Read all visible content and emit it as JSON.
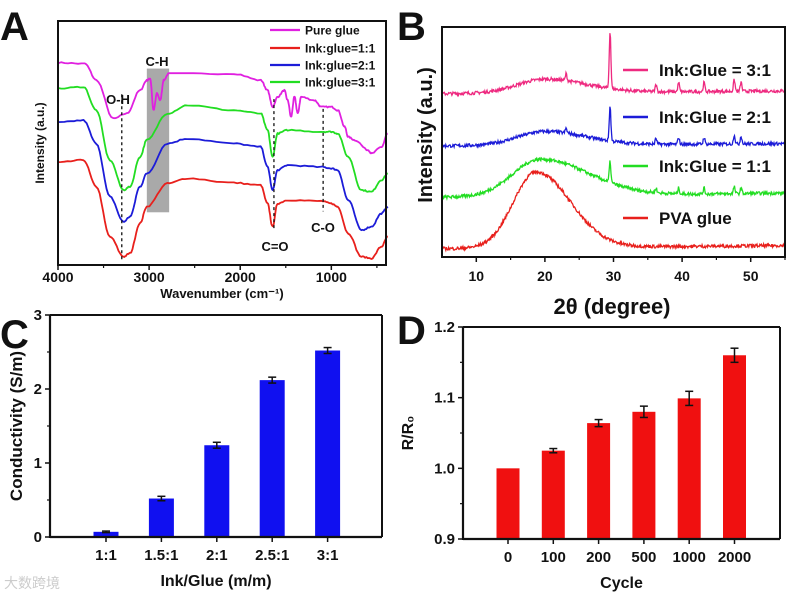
{
  "panels": {
    "a": "A",
    "b": "B",
    "c": "C",
    "d": "D"
  },
  "watermark": "大数跨境",
  "chart_data": [
    {
      "panel": "A",
      "type": "line",
      "xlabel": "Wavenumber (cm⁻¹)",
      "ylabel": "Intensity (a.u.)",
      "xlim": [
        4000,
        400
      ],
      "ylim": [
        0,
        100
      ],
      "xticks": [
        "4000",
        "3000",
        "2000",
        "1000"
      ],
      "xtick_values": [
        4000,
        3000,
        2000,
        1000
      ],
      "legend_position": "top-right",
      "annotations": [
        {
          "text": "O-H",
          "x": 3300
        },
        {
          "text": "C-H",
          "x_range": [
            3025,
            2780
          ]
        },
        {
          "text": "C=O",
          "x": 1630
        },
        {
          "text": "C-O",
          "x": 1090
        }
      ],
      "series": [
        {
          "name": "Pure glue",
          "color": "#e020e0",
          "x": [
            4000,
            3706,
            3577,
            3393,
            3245,
            3098,
            3025,
            2988,
            2951,
            2914,
            2877,
            2841,
            2785,
            2068,
            1773,
            1700,
            1645,
            1589,
            1516,
            1479,
            1442,
            1405,
            1368,
            1332,
            1184,
            1111,
            1000,
            927,
            853,
            816,
            743,
            596,
            559,
            448,
            382
          ],
          "y": [
            82.9,
            82.5,
            75.7,
            60.0,
            62.1,
            71.6,
            75.7,
            76.4,
            63.4,
            70.3,
            67.5,
            75.7,
            78.4,
            78.4,
            75.7,
            71.6,
            64.8,
            68.9,
            71.6,
            67.5,
            60.7,
            68.9,
            62.1,
            68.9,
            67.5,
            64.8,
            64.8,
            63.4,
            56.6,
            52.5,
            51.2,
            47.1,
            45.7,
            48.4,
            53.9
          ]
        },
        {
          "name": "Ink:glue=1:1",
          "color": "#e8201c",
          "x": [
            4000,
            3720,
            3580,
            3430,
            3280,
            3210,
            3100,
            3025,
            2800,
            2580,
            2070,
            1775,
            1700,
            1645,
            1590,
            1480,
            1110,
            1000,
            930,
            815,
            670,
            560,
            450,
            380
          ],
          "y": [
            42.0,
            43.0,
            32.1,
            11.6,
            3.4,
            4.8,
            17.1,
            23.9,
            33.4,
            35.5,
            33.7,
            32.7,
            25.2,
            15.7,
            25.2,
            26.6,
            26.2,
            25.2,
            23.9,
            13.0,
            3.4,
            2.7,
            7.5,
            11.6
          ]
        },
        {
          "name": "Ink:glue=2:1",
          "color": "#1c1cd8",
          "x": [
            4000,
            3720,
            3580,
            3430,
            3280,
            3210,
            3100,
            3025,
            2800,
            2580,
            2070,
            1775,
            1700,
            1645,
            1590,
            1480,
            1110,
            1000,
            930,
            815,
            670,
            560,
            450,
            380
          ],
          "y": [
            58.4,
            59.3,
            49.8,
            28.0,
            17.7,
            19.8,
            32.1,
            37.5,
            49.8,
            51.8,
            49.8,
            48.4,
            40.2,
            30.7,
            38.9,
            40.9,
            40.2,
            39.6,
            38.9,
            26.6,
            14.3,
            15.7,
            21.1,
            23.9
          ]
        },
        {
          "name": "Ink:glue=3:1",
          "color": "#22dd22",
          "x": [
            4000,
            3720,
            3580,
            3430,
            3280,
            3210,
            3100,
            3025,
            2800,
            2580,
            2070,
            1775,
            1700,
            1645,
            1590,
            1480,
            1110,
            1000,
            930,
            815,
            670,
            560,
            450,
            380
          ],
          "y": [
            72.3,
            73.0,
            63.4,
            43.0,
            30.7,
            32.1,
            44.3,
            51.2,
            62.1,
            65.5,
            63.4,
            62.1,
            55.3,
            44.3,
            53.9,
            55.3,
            54.6,
            54.6,
            53.9,
            44.3,
            30.7,
            30.0,
            34.8,
            37.5
          ]
        }
      ]
    },
    {
      "panel": "B",
      "type": "line",
      "xlabel": "2θ (degree)",
      "ylabel": "Intensity (a.u.)",
      "xlim": [
        5,
        55
      ],
      "ylim": [
        0,
        100
      ],
      "xticks": [
        "10",
        "20",
        "30",
        "40",
        "50"
      ],
      "xtick_values": [
        10,
        20,
        30,
        40,
        50
      ],
      "legend_position": "right",
      "series": [
        {
          "name": "Ink:Glue = 3:1",
          "color": "#ee2a80",
          "baseline": [
            71,
            72.2
          ],
          "hump": {
            "center": 20,
            "height": 6,
            "width_left": 4,
            "width_right": 6
          },
          "peaks": [
            [
              23.1,
              3
            ],
            [
              29.5,
              25
            ],
            [
              36.2,
              3
            ],
            [
              39.5,
              4
            ],
            [
              43.2,
              4
            ],
            [
              47.6,
              5
            ],
            [
              48.6,
              4
            ]
          ]
        },
        {
          "name": "Ink:Glue = 2:1",
          "color": "#1c1cd8",
          "baseline": [
            48.3,
            49.3
          ],
          "hump": {
            "center": 20,
            "height": 6,
            "width_left": 4,
            "width_right": 6
          },
          "peaks": [
            [
              23.1,
              2
            ],
            [
              29.5,
              15
            ],
            [
              36.2,
              2.5
            ],
            [
              39.5,
              3
            ],
            [
              43.2,
              3
            ],
            [
              47.6,
              4
            ],
            [
              48.6,
              3.5
            ]
          ]
        },
        {
          "name": "Ink:Glue = 1:1",
          "color": "#22dd22",
          "baseline": [
            26,
            27.8
          ],
          "hump": {
            "center": 19.3,
            "height": 16,
            "width_left": 4,
            "width_right": 7
          },
          "peaks": [
            [
              29.5,
              9
            ],
            [
              36.2,
              2
            ],
            [
              39.5,
              2.5
            ],
            [
              43.2,
              2.5
            ],
            [
              47.6,
              3
            ],
            [
              48.6,
              2.5
            ]
          ]
        },
        {
          "name": "PVA glue",
          "color": "#e8201c",
          "baseline": [
            3.6,
            5
          ],
          "hump": {
            "center": 18.7,
            "height": 33,
            "width_left": 3.3,
            "width_right": 5
          },
          "peaks": []
        }
      ]
    },
    {
      "panel": "C",
      "type": "bar",
      "xlabel": "Ink/Glue (m/m)",
      "ylabel": "Conductivity (S/m)",
      "ylim": [
        0,
        3
      ],
      "yticks": [
        "0",
        "1",
        "2",
        "3"
      ],
      "ytick_values": [
        0,
        1,
        2,
        3
      ],
      "categories": [
        "1:1",
        "1.5:1",
        "2:1",
        "2.5:1",
        "3:1"
      ],
      "values": [
        0.07,
        0.52,
        1.24,
        2.12,
        2.52
      ],
      "errors": [
        0.01,
        0.03,
        0.04,
        0.04,
        0.04
      ],
      "color": "#1010f0"
    },
    {
      "panel": "D",
      "type": "bar",
      "xlabel": "Cycle",
      "ylabel": "R/R₀",
      "ylim": [
        0.9,
        1.2
      ],
      "yticks": [
        "0.9",
        "1.0",
        "1.1",
        "1.2"
      ],
      "ytick_values": [
        0.9,
        1.0,
        1.1,
        1.2
      ],
      "categories": [
        "0",
        "100",
        "200",
        "500",
        "1000",
        "2000"
      ],
      "values": [
        1.0,
        1.025,
        1.064,
        1.08,
        1.099,
        1.16
      ],
      "errors": [
        0,
        0.003,
        0.005,
        0.008,
        0.01,
        0.01
      ],
      "color": "#f01010"
    }
  ]
}
